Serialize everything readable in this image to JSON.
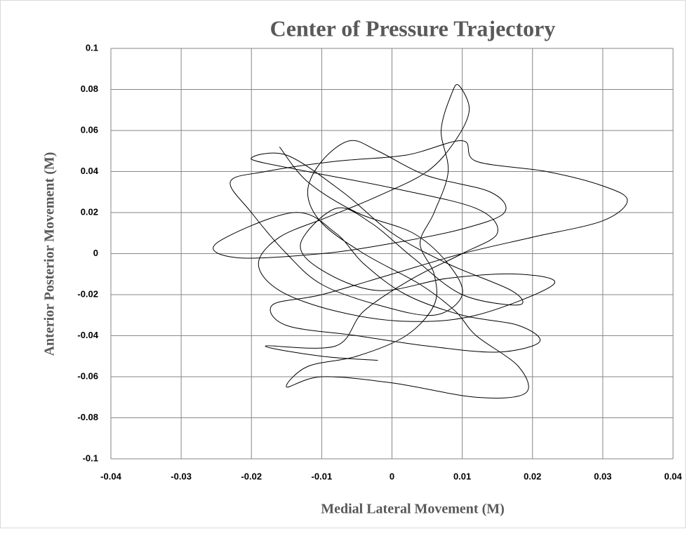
{
  "chart_data": {
    "type": "scatter",
    "title": "Center of Pressure Trajectory",
    "x_label": "Medial Lateral Movement (M)",
    "y_label": "Anterior Posterior Movement (M)",
    "xlim": [
      -0.04,
      0.04
    ],
    "xticks": [
      -0.04,
      -0.03,
      -0.02,
      -0.01,
      0,
      0.01,
      0.02,
      0.03,
      0.04
    ],
    "ylim": [
      -0.1,
      0.1
    ],
    "yticks": [
      -0.1,
      -0.08,
      -0.06,
      -0.04,
      -0.02,
      0,
      0.02,
      0.04,
      0.06,
      0.08,
      0.1
    ],
    "grid": true,
    "series": [
      {
        "color": "#000000",
        "x": [
          -0.016,
          -0.012,
          -0.005,
          0.003,
          0.008,
          0.01,
          0.006,
          -0.002,
          -0.01,
          -0.015,
          -0.02,
          -0.023,
          -0.018,
          -0.008,
          0.002,
          0.01,
          0.012,
          0.022,
          0.03,
          0.0335,
          0.03,
          0.02,
          0.01,
          0.0,
          -0.01,
          -0.017,
          -0.015,
          -0.005,
          0.005,
          0.015,
          0.021,
          0.018,
          0.01,
          0.002,
          -0.004,
          -0.008,
          -0.014,
          -0.025,
          -0.022,
          -0.01,
          0.0,
          0.01,
          0.016,
          0.014,
          0.005,
          -0.002,
          -0.006,
          -0.01,
          -0.012,
          -0.01,
          -0.004,
          0.004,
          0.009,
          0.012,
          0.018,
          0.019,
          0.012,
          0.0,
          -0.01,
          -0.015,
          -0.012,
          -0.005,
          0.002,
          0.006,
          0.006,
          0.004,
          0.006,
          0.008,
          0.007,
          0.0085,
          0.0095,
          0.011,
          0.009,
          0.005,
          -0.002,
          -0.009,
          -0.016,
          -0.019,
          -0.016,
          -0.008,
          0.002,
          0.012,
          0.023,
          0.018,
          0.008,
          -0.002,
          -0.01,
          -0.013,
          -0.008,
          -0.003,
          0.003,
          0.01,
          0.018,
          0.017,
          0.008,
          0.0,
          -0.007,
          -0.015,
          -0.02,
          -0.012,
          0.0,
          0.012,
          0.015,
          0.01,
          0.003,
          -0.004,
          -0.008,
          -0.018,
          -0.01,
          -0.002
        ],
        "values": [
          0.052,
          0.035,
          0.02,
          0.01,
          -0.005,
          -0.02,
          -0.03,
          -0.025,
          -0.015,
          0.0,
          0.02,
          0.035,
          0.04,
          0.045,
          0.048,
          0.055,
          0.045,
          0.04,
          0.033,
          0.026,
          0.016,
          0.008,
          0.0,
          -0.01,
          -0.02,
          -0.025,
          -0.035,
          -0.04,
          -0.045,
          -0.048,
          -0.043,
          -0.035,
          -0.03,
          -0.02,
          -0.005,
          0.01,
          0.02,
          0.005,
          -0.002,
          0.0,
          0.005,
          0.012,
          0.02,
          0.03,
          0.038,
          0.05,
          0.055,
          0.045,
          0.03,
          0.015,
          0.0,
          -0.015,
          -0.028,
          -0.04,
          -0.055,
          -0.068,
          -0.07,
          -0.063,
          -0.06,
          -0.065,
          -0.055,
          -0.05,
          -0.04,
          -0.025,
          -0.01,
          0.005,
          0.02,
          0.04,
          0.06,
          0.078,
          0.082,
          0.07,
          0.055,
          0.04,
          0.028,
          0.018,
          0.008,
          -0.005,
          -0.018,
          -0.028,
          -0.033,
          -0.03,
          -0.015,
          -0.01,
          -0.012,
          -0.018,
          -0.008,
          0.005,
          0.022,
          0.015,
          -0.002,
          -0.02,
          -0.025,
          -0.018,
          -0.005,
          0.01,
          0.03,
          0.048,
          0.046,
          0.04,
          0.032,
          0.022,
          0.01,
          0.0,
          -0.012,
          -0.028,
          -0.045,
          -0.045,
          -0.05,
          -0.052
        ]
      }
    ]
  }
}
